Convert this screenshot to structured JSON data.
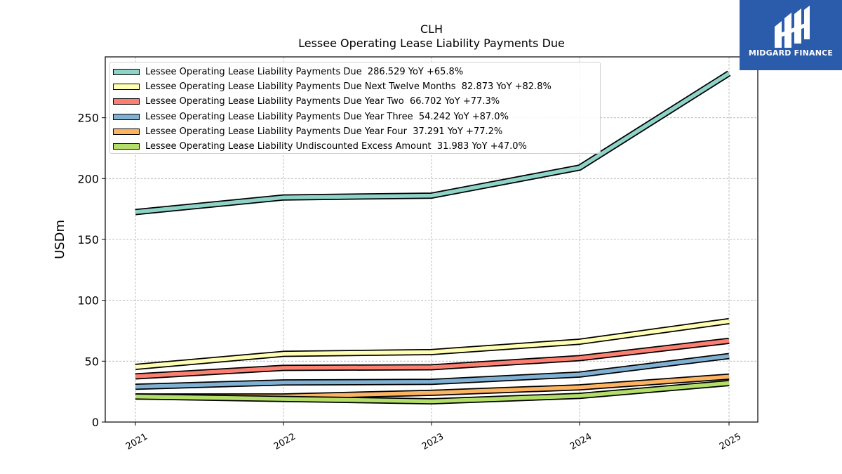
{
  "chart_data": {
    "type": "line",
    "title": "CLH",
    "subtitle": "Lessee Operating Lease Liability Payments Due",
    "xlabel": "",
    "ylabel": "USDm",
    "x": [
      "2021",
      "2022",
      "2023",
      "2024",
      "2025"
    ],
    "ylim": [
      0,
      300
    ],
    "yticks": [
      0,
      50,
      100,
      150,
      200,
      250
    ],
    "grid": true,
    "legend_position": "top-left",
    "series": [
      {
        "name": "Lessee Operating Lease Liability Payments Due  286.529 YoY +65.8%",
        "color": "#8dd3c7",
        "values": [
          172.5,
          184.5,
          186.0,
          209.0,
          286.5
        ]
      },
      {
        "name": "Lessee Operating Lease Liability Payments Due Next Twelve Months  82.873 YoY +82.8%",
        "color": "#ffffb3",
        "values": [
          45.3,
          56.0,
          57.5,
          66.0,
          82.9
        ]
      },
      {
        "name": "Lessee Operating Lease Liability Payments Due Year Two  66.702 YoY +77.3%",
        "color": "#fb8072",
        "values": [
          37.5,
          44.5,
          45.0,
          52.5,
          66.7
        ]
      },
      {
        "name": "Lessee Operating Lease Liability Payments Due Year Three  54.242 YoY +87.0%",
        "color": "#80b1d3",
        "values": [
          29.0,
          32.5,
          33.0,
          39.0,
          54.2
        ]
      },
      {
        "name": "Lessee Operating Lease Liability Payments Due Year Four  37.291 YoY +77.2%",
        "color": "#fdb462",
        "values": [
          21.0,
          21.0,
          24.0,
          28.5,
          37.3
        ]
      },
      {
        "name": "Lessee Operating Lease Liability Undiscounted Excess Amount  31.983 YoY +47.0%",
        "color": "#b3de69",
        "values": [
          21.0,
          19.0,
          17.0,
          21.5,
          32.0
        ]
      }
    ]
  },
  "logo": {
    "text": "MIDGARD FINANCE"
  }
}
